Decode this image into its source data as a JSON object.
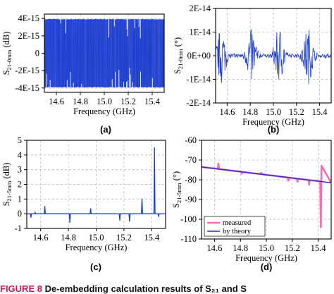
{
  "figure": {
    "caption_lead": "FIGURE 8",
    "caption_text": "De-embedding calculation results of S₂₁ and S"
  },
  "colors": {
    "signal": "#1f3fd0",
    "measured": "#ff69b4",
    "theory": "#1e32c8",
    "grid": "#b8b8b8"
  },
  "chart_data": [
    {
      "panel": "(a)",
      "type": "line",
      "title": "",
      "xlabel": "Frequency (GHz)",
      "ylabel_main": "S",
      "ylabel_sub": "21-0mm",
      "ylabel_unit": " (dB)",
      "xlim": [
        14.5,
        15.5
      ],
      "ylim": [
        -4.5e-15,
        4.5e-15
      ],
      "xticks": [
        14.6,
        14.8,
        15.0,
        15.2,
        15.4
      ],
      "xtick_labels": [
        "14.6",
        "14.8",
        "15.0",
        "15.2",
        "15.4"
      ],
      "yticks": [
        -4e-15,
        -2e-15,
        0,
        2e-15,
        4e-15
      ],
      "ytick_labels": [
        "-4E-15",
        "-2E-15",
        "0",
        "2E-15",
        "4E-15"
      ],
      "grid": true,
      "series": [
        {
          "x_range": [
            14.5,
            15.5
          ],
          "y_range": [
            -3.9e-15,
            3.9e-15
          ],
          "note_shape": "dense bipolar switching"
        }
      ]
    },
    {
      "panel": "(b)",
      "type": "line",
      "title": "",
      "xlabel": "Frequency (GHz)",
      "ylabel_main": "S",
      "ylabel_sub": "21-0mm",
      "ylabel_unit": " (°)",
      "xlim": [
        14.5,
        15.5
      ],
      "ylim": [
        -2e-14,
        2e-14
      ],
      "xticks": [
        14.6,
        14.8,
        15.0,
        15.2,
        15.4
      ],
      "xtick_labels": [
        "14.6",
        "14.8",
        "15.0",
        "15.2",
        "15.4"
      ],
      "yticks": [
        -2e-14,
        -1e-14,
        0,
        1e-14,
        2e-14
      ],
      "ytick_labels": [
        "-2E-14",
        "-1E-14",
        "0E+00",
        "1E-14",
        "2E-14"
      ],
      "grid": true,
      "series": [
        {
          "burst_centers": [
            14.55,
            14.81,
            15.05,
            15.3
          ],
          "burst_amplitude": 1.2e-14
        }
      ]
    },
    {
      "panel": "(c)",
      "type": "line",
      "title": "",
      "xlabel": "Frequency (GHz)",
      "ylabel_main": "S",
      "ylabel_sub": "21-5mm",
      "ylabel_unit": " (dB)",
      "xlim": [
        14.5,
        15.5
      ],
      "ylim": [
        -1,
        5
      ],
      "xticks": [
        14.6,
        14.8,
        15.0,
        15.2,
        15.4
      ],
      "xtick_labels": [
        "14.6",
        "14.8",
        "15.0",
        "15.2",
        "15.4"
      ],
      "yticks": [
        -1,
        0,
        1,
        2,
        3,
        4,
        5
      ],
      "ytick_labels": [
        "-1",
        "0",
        "1",
        "2",
        "3",
        "4",
        "5"
      ],
      "grid": true,
      "series": [
        {
          "baseline": 0,
          "spikes": [
            {
              "x": 14.53,
              "y": -0.25
            },
            {
              "x": 14.56,
              "y": 0.1
            },
            {
              "x": 14.63,
              "y": 0.5
            },
            {
              "x": 14.81,
              "y": -0.6
            },
            {
              "x": 14.96,
              "y": 0.35
            },
            {
              "x": 15.17,
              "y": -0.45
            },
            {
              "x": 15.24,
              "y": -0.5
            },
            {
              "x": 15.33,
              "y": 1.0
            },
            {
              "x": 15.42,
              "y": 4.5
            },
            {
              "x": 15.45,
              "y": -0.2
            }
          ]
        }
      ]
    },
    {
      "panel": "(d)",
      "type": "line",
      "title": "",
      "xlabel": "Frequency (GHz)",
      "ylabel_main": "S",
      "ylabel_sub": "21-5mm",
      "ylabel_unit": " (°)",
      "xlim": [
        14.5,
        15.5
      ],
      "ylim": [
        -110,
        -60
      ],
      "xticks": [
        14.6,
        14.8,
        15.0,
        15.2,
        15.4
      ],
      "xtick_labels": [
        "14.6",
        "14.8",
        "15.0",
        "15.2",
        "15.4"
      ],
      "yticks": [
        -110,
        -100,
        -90,
        -80,
        -70,
        -60
      ],
      "ytick_labels": [
        "-110",
        "-100",
        "-90",
        "-80",
        "-70",
        "-60"
      ],
      "grid": true,
      "legend_position": "bottom-left",
      "series": [
        {
          "name": "measured",
          "x": [
            14.5,
            15.5
          ],
          "y": [
            -73.5,
            -81.5
          ],
          "glitches": [
            {
              "x": 14.63,
              "y": -71.8
            },
            {
              "x": 14.81,
              "y": -77.0
            },
            {
              "x": 14.96,
              "y": -76.5
            },
            {
              "x": 15.17,
              "y": -80.5
            },
            {
              "x": 15.24,
              "y": -81.0
            },
            {
              "x": 15.33,
              "y": -82.5
            },
            {
              "x": 15.42,
              "y": -104.0
            }
          ]
        },
        {
          "name": "by theory",
          "x": [
            14.5,
            15.5
          ],
          "y": [
            -73.5,
            -81.5
          ]
        }
      ]
    }
  ]
}
